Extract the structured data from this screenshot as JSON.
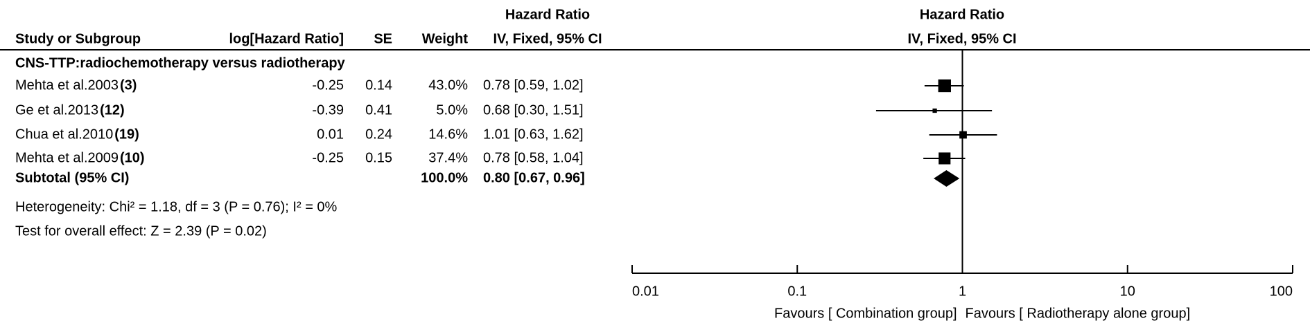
{
  "chart_data": {
    "type": "forest",
    "header": {
      "study": "Study or Subgroup",
      "log_hr": "log[Hazard Ratio]",
      "se": "SE",
      "weight": "Weight",
      "ci_title": "Hazard Ratio",
      "ci_sub": "IV, Fixed, 95% CI",
      "plot_title": "Hazard Ratio",
      "plot_sub": "IV, Fixed, 95% CI"
    },
    "group": "CNS-TTP:radiochemotherapy versus radiotherapy",
    "studies": [
      {
        "name": "Mehta et al.2003",
        "ref": "(3)",
        "log_hr": -0.25,
        "se": 0.14,
        "weight": 43.0,
        "weight_label": "43.0%",
        "hr": 0.78,
        "ci_lower": 0.59,
        "ci_upper": 1.02,
        "ci_label": "0.78 [0.59, 1.02]"
      },
      {
        "name": "Ge et al.2013",
        "ref": "(12)",
        "log_hr": -0.39,
        "se": 0.41,
        "weight": 5.0,
        "weight_label": "5.0%",
        "hr": 0.68,
        "ci_lower": 0.3,
        "ci_upper": 1.51,
        "ci_label": "0.68 [0.30, 1.51]"
      },
      {
        "name": "Chua et al.2010",
        "ref": "(19)",
        "log_hr": 0.01,
        "se": 0.24,
        "weight": 14.6,
        "weight_label": "14.6%",
        "hr": 1.01,
        "ci_lower": 0.63,
        "ci_upper": 1.62,
        "ci_label": "1.01 [0.63, 1.62]"
      },
      {
        "name": "Mehta et al.2009",
        "ref": "(10)",
        "log_hr": -0.25,
        "se": 0.15,
        "weight": 37.4,
        "weight_label": "37.4%",
        "hr": 0.78,
        "ci_lower": 0.58,
        "ci_upper": 1.04,
        "ci_label": "0.78 [0.58, 1.04]"
      }
    ],
    "subtotal": {
      "name": "Subtotal (95% CI)",
      "weight": 100.0,
      "weight_label": "100.0%",
      "hr": 0.8,
      "ci_lower": 0.67,
      "ci_upper": 0.96,
      "ci_label": "0.80 [0.67, 0.96]"
    },
    "heterogeneity": "Heterogeneity: Chi² = 1.18, df = 3 (P = 0.76); I² = 0%",
    "overall_effect": "Test for overall effect: Z = 2.39 (P = 0.02)",
    "xlim": [
      0.01,
      100
    ],
    "xticks": [
      0.01,
      0.1,
      1,
      10,
      100
    ],
    "log_scale": true,
    "color": "#000000",
    "favours_left": "Favours [ Combination group]",
    "favours_right": "Favours [ Radiotherapy alone group]"
  }
}
